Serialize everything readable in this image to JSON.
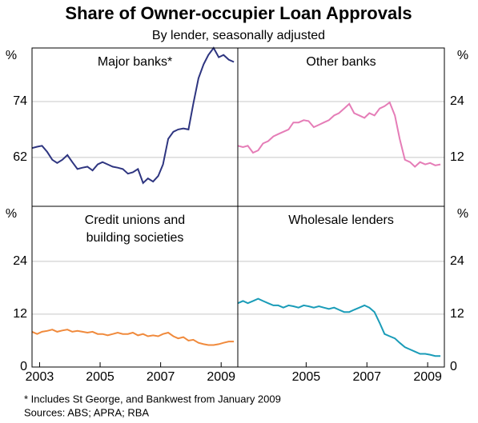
{
  "title": "Share of Owner-occupier Loan Approvals",
  "subtitle": "By lender, seasonally adjusted",
  "notes": [
    "*   Includes St George, and Bankwest from January 2009",
    "Sources: ABS; APRA; RBA"
  ],
  "chart_data": [
    {
      "type": "line",
      "title": [
        "Major banks*"
      ],
      "unit": "%",
      "color": "#2e3580",
      "x": [
        2002.75,
        2002.92,
        2003.08,
        2003.25,
        2003.42,
        2003.58,
        2003.75,
        2003.92,
        2004.08,
        2004.25,
        2004.42,
        2004.58,
        2004.75,
        2004.92,
        2005.08,
        2005.25,
        2005.42,
        2005.58,
        2005.75,
        2005.92,
        2006.08,
        2006.25,
        2006.42,
        2006.58,
        2006.75,
        2006.92,
        2007.08,
        2007.25,
        2007.42,
        2007.58,
        2007.75,
        2007.92,
        2008.08,
        2008.25,
        2008.42,
        2008.58,
        2008.75,
        2008.92,
        2009.08,
        2009.25,
        2009.42
      ],
      "values": [
        64,
        64.3,
        64.5,
        63.2,
        61.5,
        60.8,
        61.5,
        62.5,
        61,
        59.5,
        59.8,
        60,
        59.2,
        60.5,
        61,
        60.5,
        60,
        59.8,
        59.5,
        58.5,
        58.8,
        59.5,
        56.5,
        57.5,
        56.8,
        58,
        60.5,
        66,
        67.5,
        68,
        68.2,
        68,
        73.5,
        79,
        82,
        84,
        85.5,
        83.5,
        84,
        83,
        82.5
      ],
      "xlim": [
        2002.75,
        2009.55
      ],
      "ylim": [
        51.5,
        85.5
      ],
      "yticks": [
        62,
        74
      ],
      "grid": true
    },
    {
      "type": "line",
      "title": [
        "Other banks"
      ],
      "unit": "%",
      "color": "#e57db7",
      "x": [
        2002.75,
        2002.92,
        2003.08,
        2003.25,
        2003.42,
        2003.58,
        2003.75,
        2003.92,
        2004.08,
        2004.25,
        2004.42,
        2004.58,
        2004.75,
        2004.92,
        2005.08,
        2005.25,
        2005.42,
        2005.58,
        2005.75,
        2005.92,
        2006.08,
        2006.25,
        2006.42,
        2006.58,
        2006.75,
        2006.92,
        2007.08,
        2007.25,
        2007.42,
        2007.58,
        2007.75,
        2007.92,
        2008.08,
        2008.25,
        2008.42,
        2008.58,
        2008.75,
        2008.92,
        2009.08,
        2009.25,
        2009.42
      ],
      "values": [
        14.5,
        14.2,
        14.5,
        13,
        13.5,
        15,
        15.5,
        16.5,
        17,
        17.5,
        18,
        19.5,
        19.5,
        20,
        19.8,
        18.5,
        19,
        19.5,
        20,
        21,
        21.5,
        22.5,
        23.5,
        21.5,
        21,
        20.5,
        21.5,
        21,
        22.5,
        23,
        23.8,
        21,
        16,
        11.5,
        11,
        10,
        11,
        10.5,
        10.8,
        10.3,
        10.5
      ],
      "xlim": [
        2002.75,
        2009.55
      ],
      "ylim": [
        1.5,
        35.5
      ],
      "yticks": [
        12,
        24
      ],
      "grid": true
    },
    {
      "type": "line",
      "title": [
        "Credit unions and",
        "building societies"
      ],
      "unit": "%",
      "color": "#f08a3c",
      "x": [
        2002.75,
        2002.92,
        2003.08,
        2003.25,
        2003.42,
        2003.58,
        2003.75,
        2003.92,
        2004.08,
        2004.25,
        2004.42,
        2004.58,
        2004.75,
        2004.92,
        2005.08,
        2005.25,
        2005.42,
        2005.58,
        2005.75,
        2005.92,
        2006.08,
        2006.25,
        2006.42,
        2006.58,
        2006.75,
        2006.92,
        2007.08,
        2007.25,
        2007.42,
        2007.58,
        2007.75,
        2007.92,
        2008.08,
        2008.25,
        2008.42,
        2008.58,
        2008.75,
        2008.92,
        2009.08,
        2009.25,
        2009.42
      ],
      "values": [
        8,
        7.5,
        8,
        8.2,
        8.5,
        8,
        8.3,
        8.5,
        8,
        8.2,
        8,
        7.8,
        8,
        7.5,
        7.5,
        7.2,
        7.5,
        7.8,
        7.5,
        7.5,
        7.8,
        7.2,
        7.5,
        7,
        7.2,
        7,
        7.5,
        7.8,
        7,
        6.5,
        6.8,
        6,
        6.2,
        5.5,
        5.2,
        5,
        5,
        5.2,
        5.5,
        5.8,
        5.8
      ],
      "xlim": [
        2002.75,
        2009.55
      ],
      "ylim": [
        0,
        36.5
      ],
      "yticks": [
        0,
        12,
        24
      ],
      "xticks": [
        2003,
        2005,
        2007,
        2009
      ],
      "grid": true
    },
    {
      "type": "line",
      "title": [
        "Wholesale lenders"
      ],
      "unit": "%",
      "color": "#1a9cb8",
      "x": [
        2002.75,
        2002.92,
        2003.08,
        2003.25,
        2003.42,
        2003.58,
        2003.75,
        2003.92,
        2004.08,
        2004.25,
        2004.42,
        2004.58,
        2004.75,
        2004.92,
        2005.08,
        2005.25,
        2005.42,
        2005.58,
        2005.75,
        2005.92,
        2006.08,
        2006.25,
        2006.42,
        2006.58,
        2006.75,
        2006.92,
        2007.08,
        2007.25,
        2007.42,
        2007.58,
        2007.75,
        2007.92,
        2008.08,
        2008.25,
        2008.42,
        2008.58,
        2008.75,
        2008.92,
        2009.08,
        2009.25,
        2009.42
      ],
      "values": [
        14.5,
        15,
        14.5,
        15,
        15.5,
        15,
        14.5,
        14,
        14,
        13.5,
        14,
        13.8,
        13.5,
        14,
        13.8,
        13.5,
        13.8,
        13.5,
        13.2,
        13.5,
        13,
        12.5,
        12.5,
        13,
        13.5,
        14,
        13.5,
        12.5,
        10,
        7.5,
        7,
        6.5,
        5.5,
        4.5,
        4,
        3.5,
        3,
        3,
        2.8,
        2.5,
        2.5
      ],
      "xlim": [
        2002.75,
        2009.55
      ],
      "ylim": [
        0,
        36.5
      ],
      "yticks": [
        0,
        12,
        24
      ],
      "xticks": [
        2005,
        2007,
        2009
      ],
      "grid": true
    }
  ]
}
